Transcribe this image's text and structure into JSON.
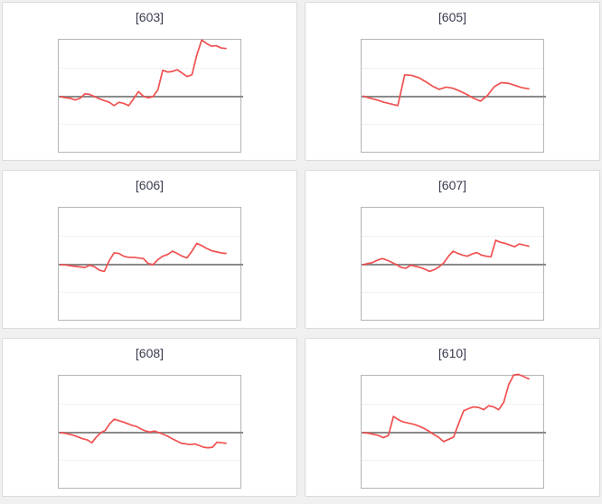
{
  "colors": {
    "page_background": "#f0f0f0",
    "panel_background": "#ffffff",
    "panel_border": "#d9d9d9",
    "plot_border": "#b5b5b5",
    "gridline": "#e3e3e3",
    "zero_line": "#8a8a8a",
    "series_line": "#f05050",
    "title_text": "#383b4e"
  },
  "chart_data": [
    {
      "type": "line",
      "title": "[603]",
      "xlabel": "",
      "ylabel": "",
      "x": "index (evenly spaced, no tick labels shown)",
      "ylim": [
        -1,
        1
      ],
      "baseline": 0,
      "gridlines_at": [
        0.5,
        -0.5
      ],
      "grid": "dotted",
      "legend_position": "none",
      "series": [
        {
          "name": "value",
          "values": [
            0,
            -0.02,
            -0.03,
            -0.06,
            -0.03,
            0.05,
            0.04,
            0,
            -0.04,
            -0.07,
            -0.1,
            -0.16,
            -0.1,
            -0.12,
            -0.16,
            -0.04,
            0.09,
            0.01,
            -0.02,
            0,
            0.12,
            0.47,
            0.44,
            0.45,
            0.48,
            0.42,
            0.36,
            0.39,
            0.74,
            1.01,
            0.95,
            0.9,
            0.91,
            0.87,
            0.86
          ]
        }
      ]
    },
    {
      "type": "line",
      "title": "[605]",
      "xlabel": "",
      "ylabel": "",
      "x": "index (evenly spaced, no tick labels shown)",
      "ylim": [
        -1,
        1
      ],
      "baseline": 0,
      "gridlines_at": [
        0.5,
        -0.5
      ],
      "grid": "dotted",
      "legend_position": "none",
      "series": [
        {
          "name": "value",
          "values": [
            0.01,
            -0.03,
            -0.06,
            -0.1,
            -0.13,
            -0.16,
            0.39,
            0.38,
            0.34,
            0.27,
            0.19,
            0.13,
            0.17,
            0.15,
            0.1,
            0.04,
            -0.03,
            -0.08,
            0.02,
            0.18,
            0.25,
            0.24,
            0.2,
            0.16,
            0.14
          ]
        }
      ]
    },
    {
      "type": "line",
      "title": "[606]",
      "xlabel": "",
      "ylabel": "",
      "x": "index (evenly spaced, no tick labels shown)",
      "ylim": [
        -1,
        1
      ],
      "baseline": 0,
      "gridlines_at": [
        0.5,
        -0.5
      ],
      "grid": "dotted",
      "legend_position": "none",
      "series": [
        {
          "name": "value",
          "values": [
            0,
            -0.005,
            -0.02,
            -0.03,
            -0.04,
            -0.05,
            -0.01,
            -0.04,
            -0.1,
            -0.12,
            0.07,
            0.21,
            0.2,
            0.15,
            0.13,
            0.13,
            0.12,
            0.11,
            0.02,
            0,
            0.09,
            0.15,
            0.18,
            0.24,
            0.2,
            0.15,
            0.12,
            0.24,
            0.38,
            0.34,
            0.29,
            0.25,
            0.23,
            0.21,
            0.2
          ]
        }
      ]
    },
    {
      "type": "line",
      "title": "[607]",
      "xlabel": "",
      "ylabel": "",
      "x": "index (evenly spaced, no tick labels shown)",
      "ylim": [
        -1,
        1
      ],
      "baseline": 0,
      "gridlines_at": [
        0.5,
        -0.5
      ],
      "grid": "dotted",
      "legend_position": "none",
      "series": [
        {
          "name": "value",
          "values": [
            0,
            0.02,
            0.04,
            0.08,
            0.11,
            0.08,
            0.04,
            0,
            -0.05,
            -0.065,
            -0.01,
            -0.03,
            -0.05,
            -0.08,
            -0.12,
            -0.09,
            -0.04,
            0.03,
            0.15,
            0.24,
            0.2,
            0.17,
            0.15,
            0.19,
            0.215,
            0.17,
            0.15,
            0.14,
            0.435,
            0.4,
            0.38,
            0.35,
            0.32,
            0.37,
            0.35,
            0.33
          ]
        }
      ]
    },
    {
      "type": "line",
      "title": "[608]",
      "xlabel": "",
      "ylabel": "",
      "x": "index (evenly spaced, no tick labels shown)",
      "ylim": [
        -1,
        1
      ],
      "baseline": 0,
      "gridlines_at": [
        0.5,
        -0.5
      ],
      "grid": "dotted",
      "legend_position": "none",
      "series": [
        {
          "name": "value",
          "values": [
            0,
            -0.01,
            -0.03,
            -0.05,
            -0.08,
            -0.11,
            -0.13,
            -0.18,
            -0.08,
            0,
            0.04,
            0.16,
            0.24,
            0.215,
            0.19,
            0.16,
            0.13,
            0.11,
            0.065,
            0.03,
            0.01,
            0.03,
            0,
            -0.03,
            -0.065,
            -0.11,
            -0.15,
            -0.19,
            -0.2,
            -0.215,
            -0.2,
            -0.23,
            -0.26,
            -0.27,
            -0.26,
            -0.17,
            -0.18,
            -0.19
          ]
        }
      ]
    },
    {
      "type": "line",
      "title": "[610]",
      "xlabel": "",
      "ylabel": "",
      "x": "index (evenly spaced, no tick labels shown)",
      "ylim": [
        -1,
        1
      ],
      "baseline": 0,
      "gridlines_at": [
        0.5,
        -0.5
      ],
      "grid": "dotted",
      "legend_position": "none",
      "series": [
        {
          "name": "value",
          "values": [
            0,
            -0.01,
            -0.03,
            -0.05,
            -0.09,
            -0.05,
            0.29,
            0.23,
            0.19,
            0.17,
            0.15,
            0.12,
            0.08,
            0.03,
            -0.03,
            -0.08,
            -0.16,
            -0.12,
            -0.08,
            0.16,
            0.39,
            0.43,
            0.46,
            0.45,
            0.41,
            0.48,
            0.46,
            0.41,
            0.54,
            0.86,
            1.03,
            1.04,
            1,
            0.96
          ]
        }
      ]
    }
  ]
}
